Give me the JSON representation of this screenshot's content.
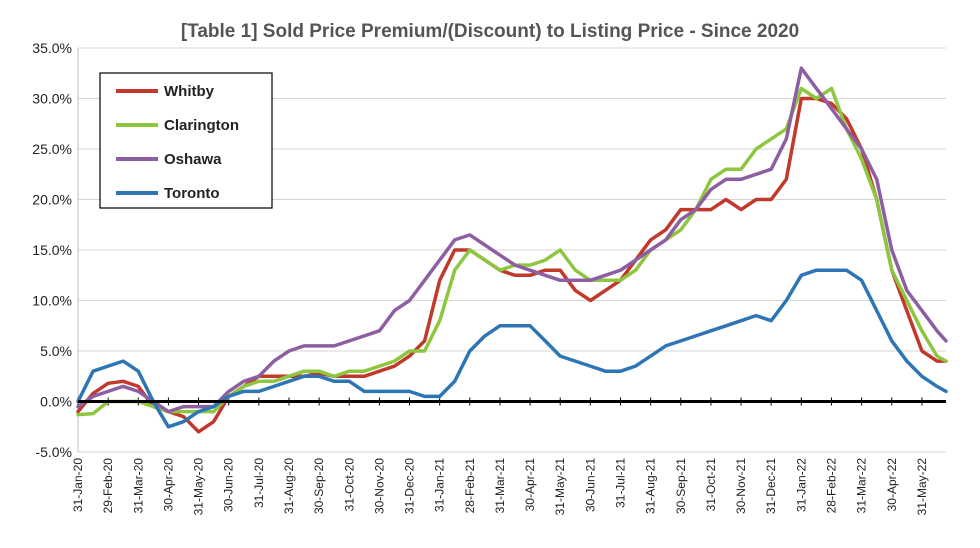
{
  "chart_data": {
    "type": "line",
    "title": "[Table 1] Sold Price Premium/(Discount) to Listing Price - Since 2020",
    "xlabel": "",
    "ylabel": "",
    "ylim": [
      -5,
      35
    ],
    "yticks": [
      "-5.0%",
      "0.0%",
      "5.0%",
      "10.0%",
      "15.0%",
      "20.0%",
      "25.0%",
      "30.0%",
      "35.0%"
    ],
    "x": [
      "31-Jan-20",
      "29-Feb-20",
      "31-Mar-20",
      "30-Apr-20",
      "31-May-20",
      "30-Jun-20",
      "31-Jul-20",
      "31-Aug-20",
      "30-Sep-20",
      "31-Oct-20",
      "30-Nov-20",
      "31-Dec-20",
      "31-Jan-21",
      "28-Feb-21",
      "31-Mar-21",
      "30-Apr-21",
      "31-May-21",
      "30-Jun-21",
      "31-Jul-21",
      "31-Aug-21",
      "30-Sep-21",
      "31-Oct-21",
      "30-Nov-21",
      "31-Dec-21",
      "31-Jan-22",
      "28-Feb-22",
      "31-Mar-22",
      "30-Apr-22",
      "31-May-22"
    ],
    "x_end_offset": 0.8,
    "legend_position": "top-left",
    "grid": true,
    "series": [
      {
        "name": "Whitby",
        "color": "#c0392b",
        "values": [
          [
            0,
            -1
          ],
          [
            0.5,
            0.8
          ],
          [
            1,
            1.8
          ],
          [
            1.5,
            2
          ],
          [
            2,
            1.5
          ],
          [
            2.5,
            -0.5
          ],
          [
            3,
            -1
          ],
          [
            3.5,
            -1.5
          ],
          [
            4,
            -3
          ],
          [
            4.5,
            -2
          ],
          [
            5,
            0.5
          ],
          [
            5.5,
            1.5
          ],
          [
            6,
            2.5
          ],
          [
            6.5,
            2.5
          ],
          [
            7,
            2.5
          ],
          [
            7.5,
            2.5
          ],
          [
            8,
            2.8
          ],
          [
            8.5,
            2.5
          ],
          [
            9,
            2.5
          ],
          [
            9.5,
            2.5
          ],
          [
            10,
            3
          ],
          [
            10.5,
            3.5
          ],
          [
            11,
            4.5
          ],
          [
            11.5,
            6
          ],
          [
            12,
            12
          ],
          [
            12.5,
            15
          ],
          [
            13,
            15
          ],
          [
            13.5,
            14
          ],
          [
            14,
            13
          ],
          [
            14.5,
            12.5
          ],
          [
            15,
            12.5
          ],
          [
            15.5,
            13
          ],
          [
            16,
            13
          ],
          [
            16.5,
            11
          ],
          [
            17,
            10
          ],
          [
            17.5,
            11
          ],
          [
            18,
            12
          ],
          [
            18.5,
            14
          ],
          [
            19,
            16
          ],
          [
            19.5,
            17
          ],
          [
            20,
            19
          ],
          [
            20.5,
            19
          ],
          [
            21,
            19
          ],
          [
            21.5,
            20
          ],
          [
            22,
            19
          ],
          [
            22.5,
            20
          ],
          [
            23,
            20
          ],
          [
            23.5,
            22
          ],
          [
            24,
            30
          ],
          [
            24.5,
            30
          ],
          [
            25,
            29.5
          ],
          [
            25.5,
            28
          ],
          [
            26,
            25
          ],
          [
            26.5,
            20
          ],
          [
            27,
            13
          ],
          [
            27.5,
            9
          ],
          [
            28,
            5
          ],
          [
            28.5,
            4
          ],
          [
            28.8,
            4
          ]
        ]
      },
      {
        "name": "Clarington",
        "color": "#8dc63f",
        "values": [
          [
            0,
            -1.3
          ],
          [
            0.5,
            -1.2
          ],
          [
            1,
            0
          ],
          [
            1.5,
            0
          ],
          [
            2,
            0
          ],
          [
            2.5,
            -0.5
          ],
          [
            3,
            -1
          ],
          [
            3.5,
            -1
          ],
          [
            4,
            -1
          ],
          [
            4.5,
            -1
          ],
          [
            5,
            0.5
          ],
          [
            5.5,
            1.5
          ],
          [
            6,
            2
          ],
          [
            6.5,
            2
          ],
          [
            7,
            2.5
          ],
          [
            7.5,
            3
          ],
          [
            8,
            3
          ],
          [
            8.5,
            2.5
          ],
          [
            9,
            3
          ],
          [
            9.5,
            3
          ],
          [
            10,
            3.5
          ],
          [
            10.5,
            4
          ],
          [
            11,
            5
          ],
          [
            11.5,
            5
          ],
          [
            12,
            8
          ],
          [
            12.5,
            13
          ],
          [
            13,
            15
          ],
          [
            13.5,
            14
          ],
          [
            14,
            13
          ],
          [
            14.5,
            13.5
          ],
          [
            15,
            13.5
          ],
          [
            15.5,
            14
          ],
          [
            16,
            15
          ],
          [
            16.5,
            13
          ],
          [
            17,
            12
          ],
          [
            17.5,
            12
          ],
          [
            18,
            12
          ],
          [
            18.5,
            13
          ],
          [
            19,
            15
          ],
          [
            19.5,
            16
          ],
          [
            20,
            17
          ],
          [
            20.5,
            19
          ],
          [
            21,
            22
          ],
          [
            21.5,
            23
          ],
          [
            22,
            23
          ],
          [
            22.5,
            25
          ],
          [
            23,
            26
          ],
          [
            23.5,
            27
          ],
          [
            24,
            31
          ],
          [
            24.5,
            30
          ],
          [
            25,
            31
          ],
          [
            25.5,
            27
          ],
          [
            26,
            24
          ],
          [
            26.5,
            20
          ],
          [
            27,
            13
          ],
          [
            27.5,
            10
          ],
          [
            28,
            7
          ],
          [
            28.5,
            4.5
          ],
          [
            28.8,
            4
          ]
        ]
      },
      {
        "name": "Oshawa",
        "color": "#8e5ea2",
        "values": [
          [
            0,
            -0.5
          ],
          [
            0.5,
            0.5
          ],
          [
            1,
            1
          ],
          [
            1.5,
            1.5
          ],
          [
            2,
            1
          ],
          [
            2.5,
            0
          ],
          [
            3,
            -1
          ],
          [
            3.5,
            -0.5
          ],
          [
            4,
            -0.5
          ],
          [
            4.5,
            -0.5
          ],
          [
            5,
            1
          ],
          [
            5.5,
            2
          ],
          [
            6,
            2.5
          ],
          [
            6.5,
            4
          ],
          [
            7,
            5
          ],
          [
            7.5,
            5.5
          ],
          [
            8,
            5.5
          ],
          [
            8.5,
            5.5
          ],
          [
            9,
            6
          ],
          [
            9.5,
            6.5
          ],
          [
            10,
            7
          ],
          [
            10.5,
            9
          ],
          [
            11,
            10
          ],
          [
            11.5,
            12
          ],
          [
            12,
            14
          ],
          [
            12.5,
            16
          ],
          [
            13,
            16.5
          ],
          [
            13.5,
            15.5
          ],
          [
            14,
            14.5
          ],
          [
            14.5,
            13.5
          ],
          [
            15,
            13
          ],
          [
            15.5,
            12.5
          ],
          [
            16,
            12
          ],
          [
            16.5,
            12
          ],
          [
            17,
            12
          ],
          [
            17.5,
            12.5
          ],
          [
            18,
            13
          ],
          [
            18.5,
            14
          ],
          [
            19,
            15
          ],
          [
            19.5,
            16
          ],
          [
            20,
            18
          ],
          [
            20.5,
            19
          ],
          [
            21,
            21
          ],
          [
            21.5,
            22
          ],
          [
            22,
            22
          ],
          [
            22.5,
            22.5
          ],
          [
            23,
            23
          ],
          [
            23.5,
            26
          ],
          [
            24,
            33
          ],
          [
            24.5,
            31
          ],
          [
            25,
            29
          ],
          [
            25.5,
            27
          ],
          [
            26,
            25
          ],
          [
            26.5,
            22
          ],
          [
            27,
            15
          ],
          [
            27.5,
            11
          ],
          [
            28,
            9
          ],
          [
            28.5,
            7
          ],
          [
            28.8,
            6
          ]
        ]
      },
      {
        "name": "Toronto",
        "color": "#2e75b6",
        "values": [
          [
            0,
            0
          ],
          [
            0.5,
            3
          ],
          [
            1,
            3.5
          ],
          [
            1.5,
            4
          ],
          [
            2,
            3
          ],
          [
            2.5,
            0
          ],
          [
            3,
            -2.5
          ],
          [
            3.5,
            -2
          ],
          [
            4,
            -1
          ],
          [
            4.5,
            -0.5
          ],
          [
            5,
            0.5
          ],
          [
            5.5,
            1
          ],
          [
            6,
            1
          ],
          [
            6.5,
            1.5
          ],
          [
            7,
            2
          ],
          [
            7.5,
            2.5
          ],
          [
            8,
            2.5
          ],
          [
            8.5,
            2
          ],
          [
            9,
            2
          ],
          [
            9.5,
            1
          ],
          [
            10,
            1
          ],
          [
            10.5,
            1
          ],
          [
            11,
            1
          ],
          [
            11.5,
            0.5
          ],
          [
            12,
            0.5
          ],
          [
            12.5,
            2
          ],
          [
            13,
            5
          ],
          [
            13.5,
            6.5
          ],
          [
            14,
            7.5
          ],
          [
            14.5,
            7.5
          ],
          [
            15,
            7.5
          ],
          [
            15.5,
            6
          ],
          [
            16,
            4.5
          ],
          [
            16.5,
            4
          ],
          [
            17,
            3.5
          ],
          [
            17.5,
            3
          ],
          [
            18,
            3
          ],
          [
            18.5,
            3.5
          ],
          [
            19,
            4.5
          ],
          [
            19.5,
            5.5
          ],
          [
            20,
            6
          ],
          [
            20.5,
            6.5
          ],
          [
            21,
            7
          ],
          [
            21.5,
            7.5
          ],
          [
            22,
            8
          ],
          [
            22.5,
            8.5
          ],
          [
            23,
            8
          ],
          [
            23.5,
            10
          ],
          [
            24,
            12.5
          ],
          [
            24.5,
            13
          ],
          [
            25,
            13
          ],
          [
            25.5,
            13
          ],
          [
            26,
            12
          ],
          [
            26.5,
            9
          ],
          [
            27,
            6
          ],
          [
            27.5,
            4
          ],
          [
            28,
            2.5
          ],
          [
            28.5,
            1.5
          ],
          [
            28.8,
            1
          ]
        ]
      }
    ]
  }
}
